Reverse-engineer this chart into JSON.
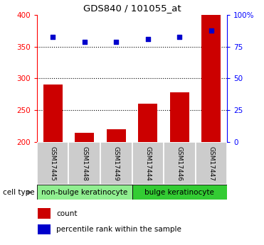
{
  "title": "GDS840 / 101055_at",
  "samples": [
    "GSM17445",
    "GSM17448",
    "GSM17449",
    "GSM17444",
    "GSM17446",
    "GSM17447"
  ],
  "counts": [
    290,
    215,
    220,
    260,
    278,
    400
  ],
  "percentile_ranks": [
    365,
    357,
    357,
    362,
    365,
    375
  ],
  "ylim": [
    200,
    400
  ],
  "yticks": [
    200,
    250,
    300,
    350,
    400
  ],
  "y2lim": [
    0,
    100
  ],
  "y2ticks": [
    0,
    25,
    50,
    75,
    100
  ],
  "y2ticklabels": [
    "0",
    "25",
    "50",
    "75",
    "100%"
  ],
  "bar_color": "#cc0000",
  "dot_color": "#0000cc",
  "group1_label": "non-bulge keratinocyte",
  "group2_label": "bulge keratinocyte",
  "group1_color": "#90ee90",
  "group2_color": "#33cc33",
  "sample_box_color": "#cccccc",
  "cell_type_label": "cell type",
  "legend_count": "count",
  "legend_percentile": "percentile rank within the sample",
  "n_group1": 3,
  "n_group2": 3,
  "bar_width": 0.6,
  "dot_size": 22
}
